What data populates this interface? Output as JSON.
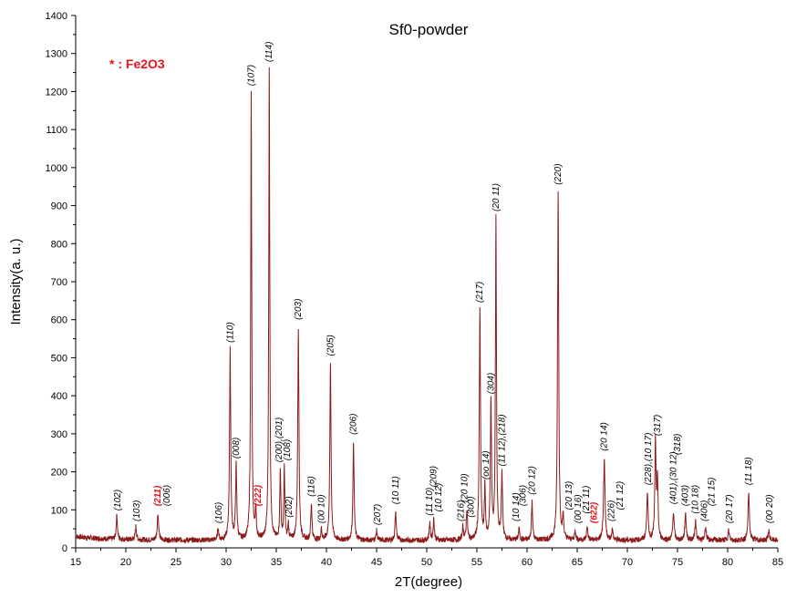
{
  "chart_data": {
    "type": "line",
    "title": "Sf0-powder",
    "xlabel": "2T(degree)",
    "ylabel": "Intensity(a. u.)",
    "xlim": [
      15,
      85
    ],
    "ylim": [
      0,
      1400
    ],
    "xticks": [
      15,
      20,
      25,
      30,
      35,
      40,
      45,
      50,
      55,
      60,
      65,
      70,
      75,
      80,
      85
    ],
    "yticks": [
      0,
      100,
      200,
      300,
      400,
      500,
      600,
      700,
      800,
      900,
      1000,
      1100,
      1200,
      1300,
      1400
    ],
    "grid": false,
    "line_color": "#8b1a1a",
    "legend_note": {
      "text": "* : Fe2O3",
      "color": "#e8141a"
    },
    "baseline": 20,
    "peaks": [
      {
        "x": 19.1,
        "y": 85,
        "w": 0.07
      },
      {
        "x": 21.0,
        "y": 55,
        "w": 0.07
      },
      {
        "x": 23.2,
        "y": 90,
        "w": 0.08
      },
      {
        "x": 29.2,
        "y": 50,
        "w": 0.07
      },
      {
        "x": 30.4,
        "y": 520,
        "w": 0.07
      },
      {
        "x": 31.0,
        "y": 215,
        "w": 0.07
      },
      {
        "x": 32.5,
        "y": 1195,
        "w": 0.06
      },
      {
        "x": 32.95,
        "y": 95,
        "w": 0.06
      },
      {
        "x": 34.3,
        "y": 1258,
        "w": 0.06
      },
      {
        "x": 35.4,
        "y": 205,
        "w": 0.06
      },
      {
        "x": 35.8,
        "y": 210,
        "w": 0.06
      },
      {
        "x": 36.2,
        "y": 60,
        "w": 0.06
      },
      {
        "x": 37.2,
        "y": 580,
        "w": 0.07
      },
      {
        "x": 38.5,
        "y": 115,
        "w": 0.07
      },
      {
        "x": 39.5,
        "y": 50,
        "w": 0.06
      },
      {
        "x": 40.4,
        "y": 485,
        "w": 0.07
      },
      {
        "x": 42.7,
        "y": 278,
        "w": 0.07
      },
      {
        "x": 45.0,
        "y": 45,
        "w": 0.07
      },
      {
        "x": 46.9,
        "y": 95,
        "w": 0.07
      },
      {
        "x": 50.3,
        "y": 65,
        "w": 0.07
      },
      {
        "x": 50.7,
        "y": 75,
        "w": 0.07
      },
      {
        "x": 53.6,
        "y": 55,
        "w": 0.07
      },
      {
        "x": 54.0,
        "y": 100,
        "w": 0.07
      },
      {
        "x": 55.3,
        "y": 625,
        "w": 0.07
      },
      {
        "x": 55.8,
        "y": 160,
        "w": 0.06
      },
      {
        "x": 56.4,
        "y": 385,
        "w": 0.07
      },
      {
        "x": 56.9,
        "y": 865,
        "w": 0.06
      },
      {
        "x": 57.5,
        "y": 195,
        "w": 0.07
      },
      {
        "x": 59.2,
        "y": 50,
        "w": 0.07
      },
      {
        "x": 60.5,
        "y": 120,
        "w": 0.07
      },
      {
        "x": 63.1,
        "y": 935,
        "w": 0.07
      },
      {
        "x": 63.6,
        "y": 80,
        "w": 0.07
      },
      {
        "x": 64.8,
        "y": 45,
        "w": 0.07
      },
      {
        "x": 66.0,
        "y": 55,
        "w": 0.07
      },
      {
        "x": 67.7,
        "y": 235,
        "w": 0.08
      },
      {
        "x": 68.5,
        "y": 50,
        "w": 0.07
      },
      {
        "x": 72.0,
        "y": 145,
        "w": 0.08
      },
      {
        "x": 72.8,
        "y": 275,
        "w": 0.07
      },
      {
        "x": 73.0,
        "y": 175,
        "w": 0.07
      },
      {
        "x": 74.6,
        "y": 95,
        "w": 0.08
      },
      {
        "x": 75.8,
        "y": 90,
        "w": 0.08
      },
      {
        "x": 76.8,
        "y": 70,
        "w": 0.08
      },
      {
        "x": 77.8,
        "y": 55,
        "w": 0.08
      },
      {
        "x": 80.1,
        "y": 45,
        "w": 0.08
      },
      {
        "x": 82.1,
        "y": 145,
        "w": 0.08
      },
      {
        "x": 84.1,
        "y": 45,
        "w": 0.08
      }
    ],
    "annotations": [
      {
        "text": "(102)",
        "x": 19.1,
        "y": 88,
        "color": "#000000"
      },
      {
        "text": "(103)",
        "x": 21.0,
        "y": 60,
        "color": "#000000"
      },
      {
        "text": "(211)",
        "x": 23.1,
        "y": 100,
        "color": "#e8141a",
        "bold": true
      },
      {
        "text": "(006)",
        "x": 24.0,
        "y": 100,
        "color": "#000000"
      },
      {
        "text": "(106)",
        "x": 29.2,
        "y": 55,
        "color": "#000000"
      },
      {
        "text": "(110)",
        "x": 30.3,
        "y": 530,
        "color": "#000000"
      },
      {
        "text": "(008)",
        "x": 30.9,
        "y": 225,
        "color": "#000000"
      },
      {
        "text": "(107)",
        "x": 32.4,
        "y": 1205,
        "color": "#000000"
      },
      {
        "text": "(222)",
        "x": 33.1,
        "y": 100,
        "color": "#e8141a",
        "bold": true
      },
      {
        "text": "(114)",
        "x": 34.2,
        "y": 1268,
        "color": "#000000"
      },
      {
        "text": "(200),(201)",
        "x": 35.2,
        "y": 215,
        "color": "#000000"
      },
      {
        "text": "(108)",
        "x": 36.0,
        "y": 220,
        "color": "#000000"
      },
      {
        "text": "(202)",
        "x": 36.2,
        "y": 70,
        "color": "#000000"
      },
      {
        "text": "(203)",
        "x": 37.1,
        "y": 590,
        "color": "#000000"
      },
      {
        "text": "(116)",
        "x": 38.4,
        "y": 125,
        "color": "#000000"
      },
      {
        "text": "(00 10)",
        "x": 39.4,
        "y": 55,
        "color": "#000000"
      },
      {
        "text": "(205)",
        "x": 40.3,
        "y": 495,
        "color": "#000000"
      },
      {
        "text": "(206)",
        "x": 42.6,
        "y": 288,
        "color": "#000000"
      },
      {
        "text": "(207)",
        "x": 45.0,
        "y": 50,
        "color": "#000000"
      },
      {
        "text": "(10 11)",
        "x": 46.8,
        "y": 105,
        "color": "#000000"
      },
      {
        "text": "(11 10)",
        "x": 50.2,
        "y": 75,
        "color": "#000000"
      },
      {
        "text": "(209)",
        "x": 50.6,
        "y": 150,
        "color": "#000000"
      },
      {
        "text": "(10 12)",
        "x": 51.1,
        "y": 85,
        "color": "#000000"
      },
      {
        "text": "(216)",
        "x": 53.3,
        "y": 60,
        "color": "#000000"
      },
      {
        "text": "(20 10)",
        "x": 53.7,
        "y": 110,
        "color": "#000000"
      },
      {
        "text": "(300)",
        "x": 54.3,
        "y": 70,
        "color": "#000000"
      },
      {
        "text": "(217)",
        "x": 55.2,
        "y": 635,
        "color": "#000000"
      },
      {
        "text": "(oo 14)",
        "x": 55.8,
        "y": 170,
        "color": "#000000"
      },
      {
        "text": "(304)",
        "x": 56.3,
        "y": 395,
        "color": "#000000"
      },
      {
        "text": "(20 11)",
        "x": 56.8,
        "y": 875,
        "color": "#000000"
      },
      {
        "text": "(11 12),(218)",
        "x": 57.4,
        "y": 205,
        "color": "#000000"
      },
      {
        "text": "(10 14)",
        "x": 58.8,
        "y": 60,
        "color": "#000000"
      },
      {
        "text": "(306)",
        "x": 59.5,
        "y": 100,
        "color": "#000000"
      },
      {
        "text": "(20 12)",
        "x": 60.4,
        "y": 130,
        "color": "#000000"
      },
      {
        "text": "(220)",
        "x": 63.0,
        "y": 945,
        "color": "#000000"
      },
      {
        "text": "(20 13)",
        "x": 64.1,
        "y": 90,
        "color": "#000000"
      },
      {
        "text": "(00 16)",
        "x": 65.0,
        "y": 55,
        "color": "#000000"
      },
      {
        "text": "(21 11)",
        "x": 65.8,
        "y": 80,
        "color": "#000000"
      },
      {
        "text": "(622)",
        "x": 66.6,
        "y": 55,
        "color": "#e8141a",
        "bold": true
      },
      {
        "text": "(20 14)",
        "x": 67.6,
        "y": 245,
        "color": "#000000"
      },
      {
        "text": "(226)",
        "x": 68.3,
        "y": 60,
        "color": "#000000"
      },
      {
        "text": "(21 12)",
        "x": 69.2,
        "y": 90,
        "color": "#000000"
      },
      {
        "text": "(228),(10 17)",
        "x": 72.0,
        "y": 155,
        "color": "#000000"
      },
      {
        "text": "(317)",
        "x": 72.9,
        "y": 285,
        "color": "#000000"
      },
      {
        "text": "(401),(30 12)",
        "x": 74.5,
        "y": 105,
        "color": "#000000"
      },
      {
        "text": "(318)",
        "x": 74.9,
        "y": 235,
        "color": "#000000"
      },
      {
        "text": "(403)",
        "x": 75.7,
        "y": 100,
        "color": "#000000"
      },
      {
        "text": "(10 18)",
        "x": 76.7,
        "y": 80,
        "color": "#000000"
      },
      {
        "text": "(406)",
        "x": 77.6,
        "y": 60,
        "color": "#000000"
      },
      {
        "text": "(21 15)",
        "x": 78.3,
        "y": 100,
        "color": "#000000"
      },
      {
        "text": "(20 17)",
        "x": 80.1,
        "y": 55,
        "color": "#000000"
      },
      {
        "text": "(11 18)",
        "x": 82.0,
        "y": 155,
        "color": "#000000"
      },
      {
        "text": "(00 20)",
        "x": 84.1,
        "y": 55,
        "color": "#000000"
      }
    ]
  }
}
